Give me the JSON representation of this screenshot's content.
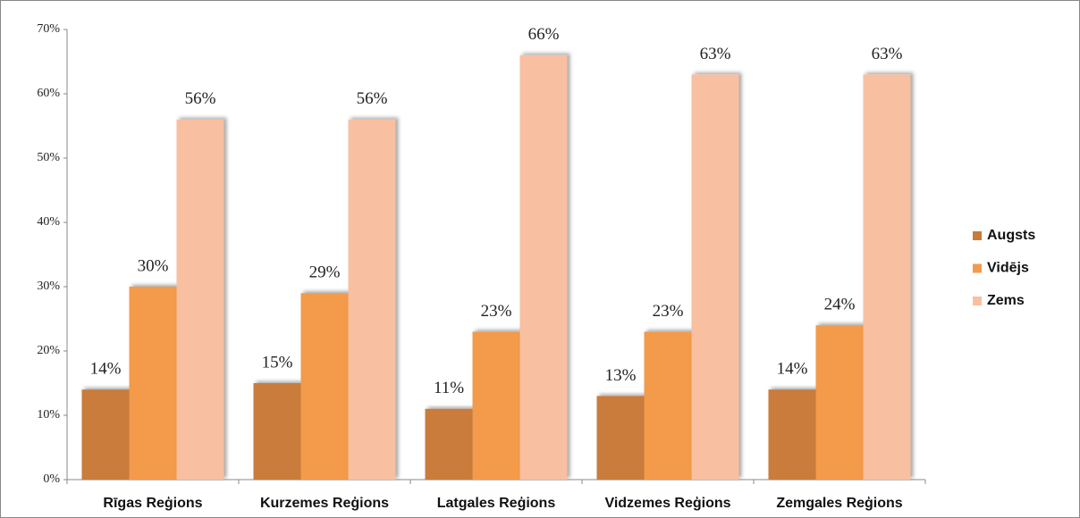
{
  "chart_data": {
    "type": "bar",
    "categories": [
      "Rīgas Reģions",
      "Kurzemes Reģions",
      "Latgales Reģions",
      "Vidzemes Reģions",
      "Zemgales Reģions"
    ],
    "series": [
      {
        "name": "Augsts",
        "color": "#c97b3a",
        "values": [
          14,
          15,
          11,
          13,
          14
        ],
        "value_labels": [
          "14%",
          "15%",
          "11%",
          "13%",
          "14%"
        ]
      },
      {
        "name": "Vidējs",
        "color": "#f39a4b",
        "values": [
          30,
          29,
          23,
          23,
          24
        ],
        "value_labels": [
          "30%",
          "29%",
          "23%",
          "23%",
          "24%"
        ]
      },
      {
        "name": "Zems",
        "color": "#f8c0a0",
        "values": [
          56,
          56,
          66,
          63,
          63
        ],
        "value_labels": [
          "56%",
          "56%",
          "66%",
          "63%",
          "63%"
        ]
      }
    ],
    "ylim": [
      0,
      70
    ],
    "yticks": [
      {
        "value": 0,
        "label": "0%"
      },
      {
        "value": 10,
        "label": "10%"
      },
      {
        "value": 20,
        "label": "20%"
      },
      {
        "value": 30,
        "label": "30%"
      },
      {
        "value": 40,
        "label": "40%"
      },
      {
        "value": 50,
        "label": "50%"
      },
      {
        "value": 60,
        "label": "60%"
      },
      {
        "value": 70,
        "label": "70%"
      }
    ],
    "legend": "right"
  }
}
